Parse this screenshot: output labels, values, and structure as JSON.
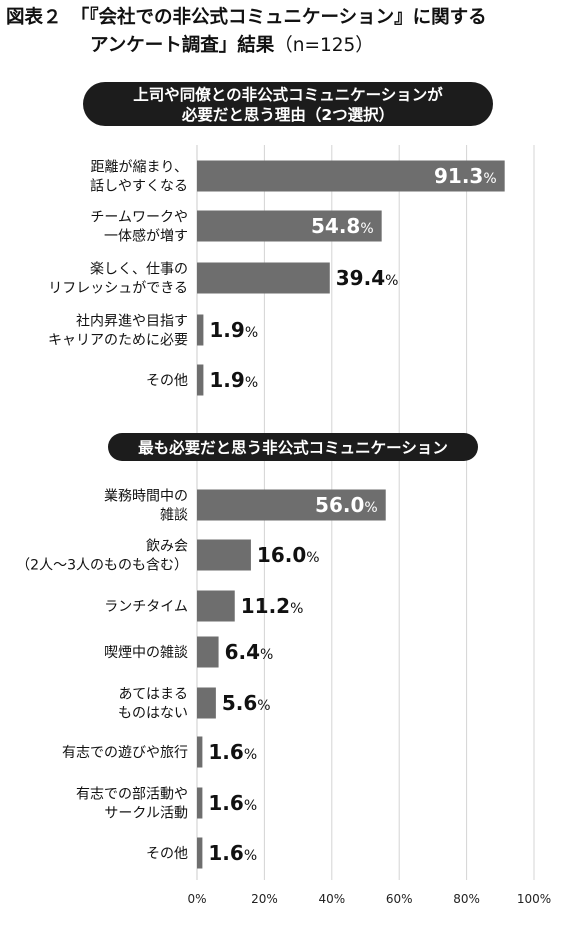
{
  "figure": {
    "label": "図表２",
    "title_line1": "「『会社での非公式コミュニケーション』に関する",
    "title_line2": "アンケート調査」結果",
    "sample": "（n=125）"
  },
  "chart_data": [
    {
      "type": "bar",
      "orientation": "horizontal",
      "title": "上司や同僚との非公式コミュニケーションが\n必要だと思う理由（2つ選択）",
      "categories": [
        "距離が縮まり、\n話しやすくなる",
        "チームワークや\n一体感が増す",
        "楽しく、仕事の\nリフレッシュができる",
        "社内昇進や目指す\nキャリアのために必要",
        "その他"
      ],
      "values": [
        91.3,
        54.8,
        39.4,
        1.9,
        1.9
      ],
      "unit": "%"
    },
    {
      "type": "bar",
      "orientation": "horizontal",
      "title": "最も必要だと思う非公式コミュニケーション",
      "categories": [
        "業務時間中の\n雑談",
        "飲み会\n（2人～3人のものも含む）",
        "ランチタイム",
        "喫煙中の雑談",
        "あてはまる\nものはない",
        "有志での遊びや旅行",
        "有志での部活動や\nサークル活動",
        "その他"
      ],
      "values": [
        56.0,
        16.0,
        11.2,
        6.4,
        5.6,
        1.6,
        1.6,
        1.6
      ],
      "unit": "%"
    }
  ],
  "x_axis": {
    "ticks": [
      0,
      20,
      40,
      60,
      80,
      100
    ],
    "tick_labels": [
      "0%",
      "20%",
      "40%",
      "60%",
      "80%",
      "100%"
    ],
    "range": [
      0,
      100
    ],
    "grid": true
  },
  "colors": {
    "bar": "#6e6e6e",
    "header_bg": "#1c1c1c",
    "header_text": "#ffffff",
    "grid": "#d4d4d4",
    "label_inside": "#ffffff",
    "label_outside": "#111111"
  }
}
